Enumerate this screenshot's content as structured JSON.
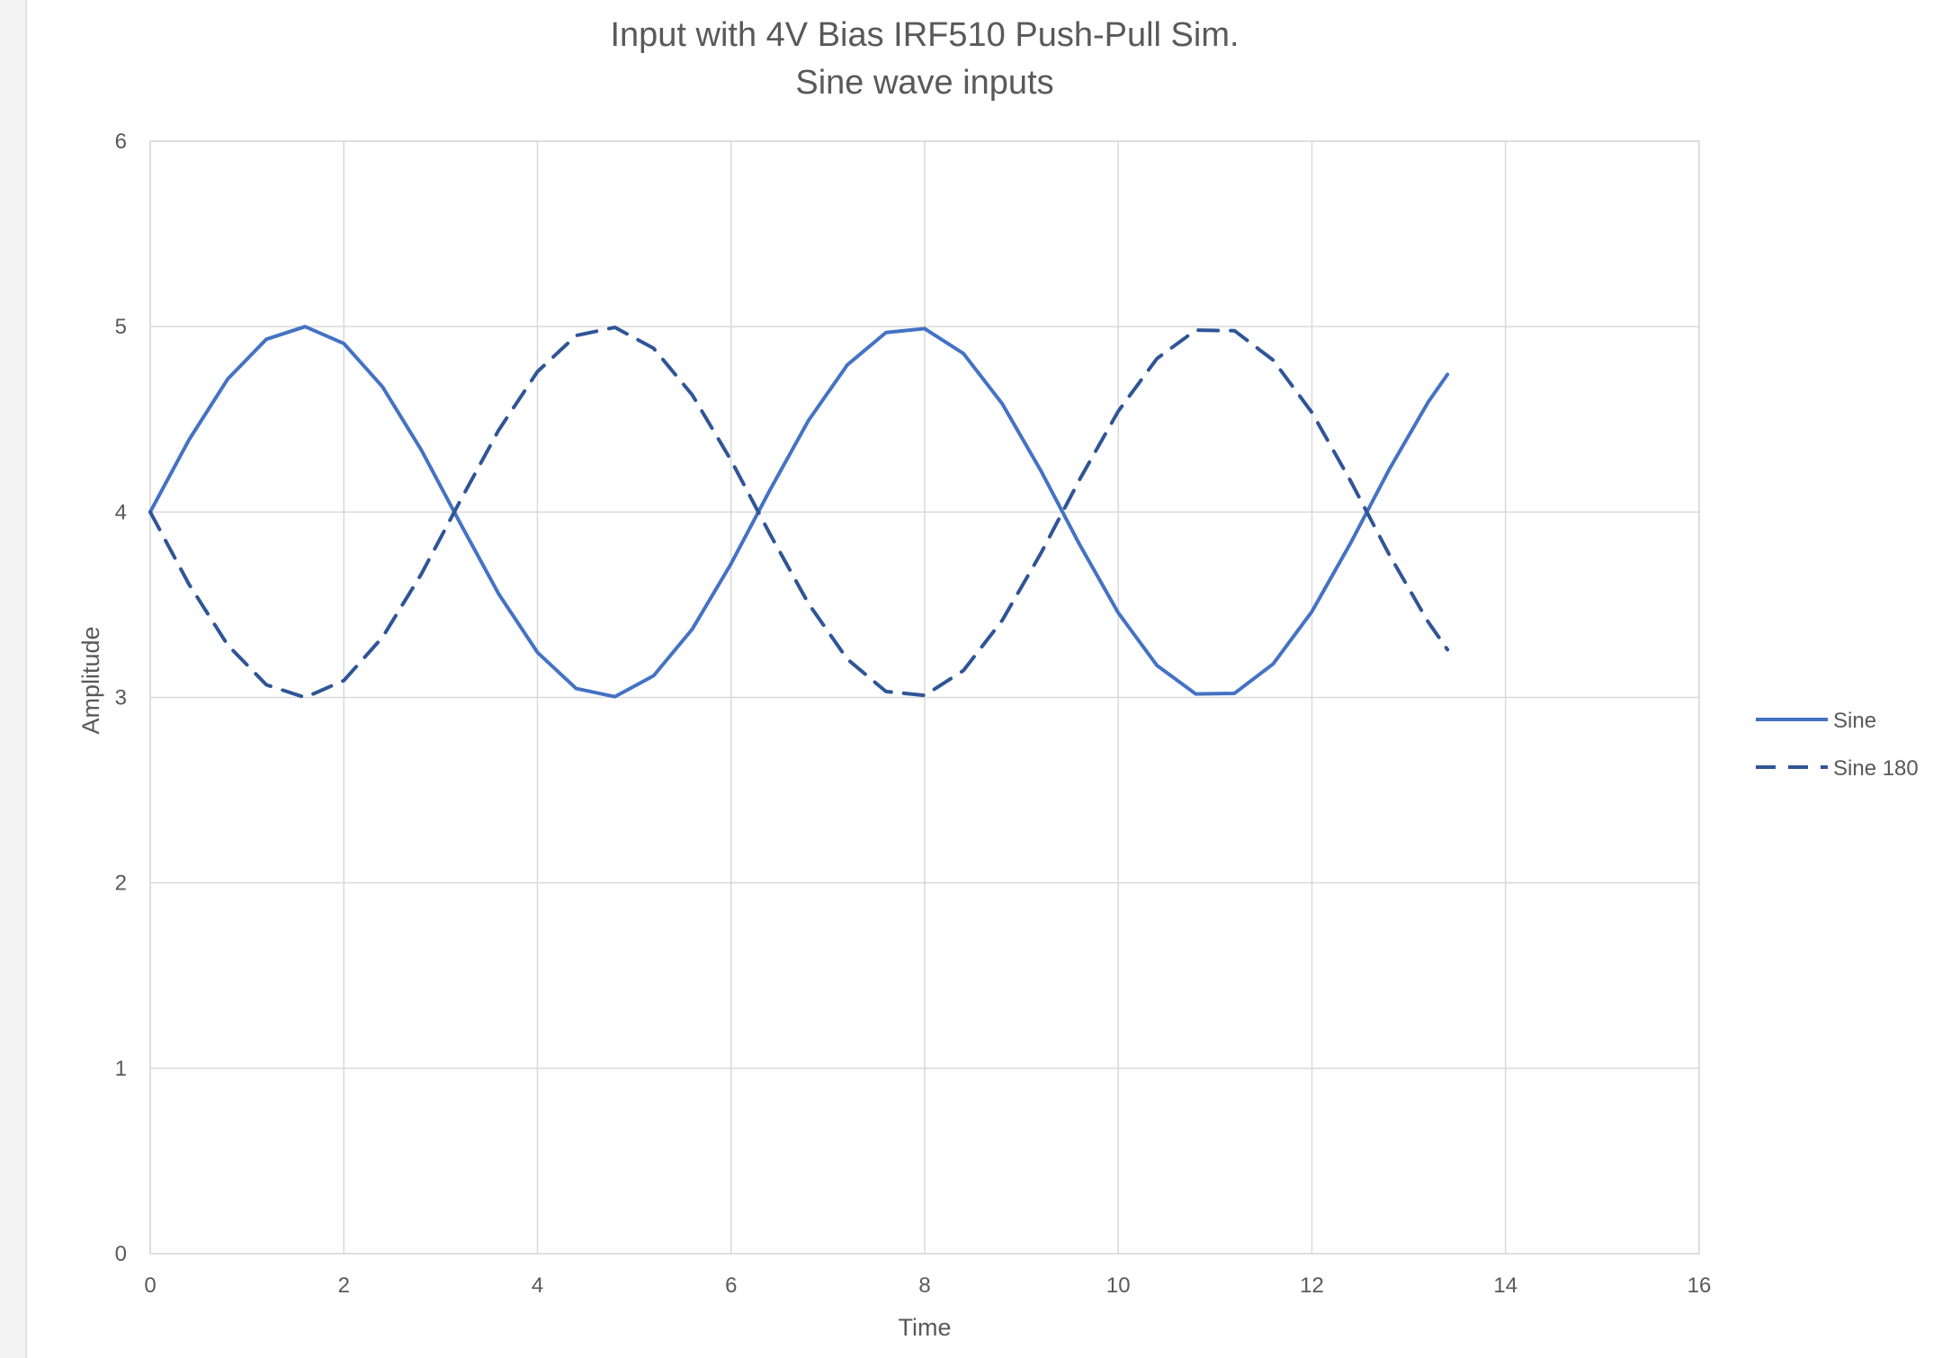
{
  "colors": {
    "sine": "#4472c4",
    "sine_180": "#2f5597",
    "gridline": "#d9d9d9",
    "text": "#595959"
  },
  "chart_data": {
    "type": "line",
    "title": "Input with 4V Bias IRF510 Push-Pull Sim.",
    "subtitle": "Sine wave inputs",
    "xlabel": "Time",
    "ylabel": "Amplitude",
    "xlim": [
      0,
      16
    ],
    "ylim": [
      0,
      6
    ],
    "x_ticks": [
      "0",
      "2",
      "4",
      "6",
      "8",
      "10",
      "12",
      "14",
      "16"
    ],
    "y_ticks": [
      "0",
      "1",
      "2",
      "3",
      "4",
      "5",
      "6"
    ],
    "grid": true,
    "legend_position": "right",
    "x": [
      0,
      0.4,
      0.8,
      1.2,
      1.6,
      2.0,
      2.4,
      2.8,
      3.2,
      3.6,
      4.0,
      4.4,
      4.8,
      5.2,
      5.6,
      6.0,
      6.4,
      6.8,
      7.2,
      7.6,
      8.0,
      8.4,
      8.8,
      9.2,
      9.6,
      10.0,
      10.4,
      10.8,
      11.2,
      11.6,
      12.0,
      12.4,
      12.8,
      13.2,
      13.4
    ],
    "series": [
      {
        "name": "Sine",
        "style": "solid",
        "values": [
          4.0,
          4.389,
          4.717,
          4.932,
          5.0,
          4.909,
          4.675,
          4.335,
          3.942,
          3.558,
          3.243,
          3.048,
          3.004,
          3.117,
          3.369,
          3.721,
          4.117,
          4.494,
          4.793,
          4.968,
          4.989,
          4.855,
          4.585,
          4.223,
          3.825,
          3.456,
          3.172,
          3.019,
          3.022,
          3.181,
          3.463,
          3.833,
          4.231,
          4.592,
          4.742
        ]
      },
      {
        "name": "Sine 180",
        "style": "dashed",
        "values": [
          4.0,
          3.611,
          3.283,
          3.068,
          3.0,
          3.091,
          3.325,
          3.665,
          4.058,
          4.442,
          4.757,
          4.952,
          4.996,
          4.883,
          4.631,
          4.279,
          3.883,
          3.506,
          3.207,
          3.032,
          3.011,
          3.145,
          3.415,
          3.777,
          4.175,
          4.544,
          4.828,
          4.981,
          4.978,
          4.819,
          4.537,
          4.167,
          3.769,
          3.408,
          3.258
        ]
      }
    ]
  }
}
